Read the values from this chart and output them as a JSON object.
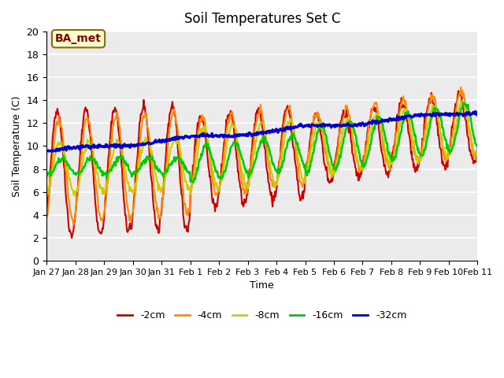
{
  "title": "Soil Temperatures Set C",
  "xlabel": "Time",
  "ylabel": "Soil Temperature (C)",
  "annotation": "BA_met",
  "annotation_color": "#8B0000",
  "annotation_bg": "#FFFFCC",
  "ylim": [
    0,
    20
  ],
  "yticks": [
    0,
    2,
    4,
    6,
    8,
    10,
    12,
    14,
    16,
    18,
    20
  ],
  "xtick_labels": [
    "Jan 27",
    "Jan 28",
    "Jan 29",
    "Jan 30",
    "Jan 31",
    "Feb 1",
    "Feb 2",
    "Feb 3",
    "Feb 4",
    "Feb 5",
    "Feb 6",
    "Feb 7",
    "Feb 8",
    "Feb 9",
    "Feb 10",
    "Feb 11"
  ],
  "colors": {
    "-2cm": "#CC0000",
    "-4cm": "#FF8C00",
    "-8cm": "#CCCC00",
    "-16cm": "#00CC00",
    "-32cm": "#0000CC"
  },
  "line_widths": {
    "-2cm": 1.5,
    "-4cm": 1.5,
    "-8cm": 1.5,
    "-16cm": 1.8,
    "-32cm": 2.2
  },
  "plot_bg": "#EBEBEB"
}
